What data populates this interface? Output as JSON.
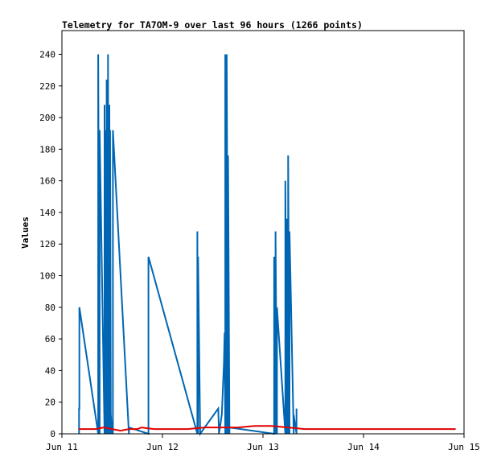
{
  "chart_data": {
    "type": "line",
    "title": "Telemetry for TA7OM-9 over last 96 hours (1266 points)",
    "xlabel": "",
    "ylabel": "Values",
    "x_ticks": [
      "Jun 11",
      "Jun 12",
      "Jun 13",
      "Jun 14",
      "Jun 15"
    ],
    "y_ticks": [
      0,
      20,
      40,
      60,
      80,
      100,
      120,
      140,
      160,
      180,
      200,
      220,
      240
    ],
    "xlim": [
      "2024-06-11T00:00",
      "2024-06-15T00:00"
    ],
    "ylim": [
      0,
      255
    ],
    "grid": false,
    "legend": "none",
    "series": [
      {
        "color": "#0066b3",
        "x": [
          "2024-06-11T04:05",
          "2024-06-11T04:05",
          "2024-06-11T04:10",
          "2024-06-11T04:10",
          "2024-06-11T08:40",
          "2024-06-11T08:40",
          "2024-06-11T09:00",
          "2024-06-11T09:00",
          "2024-06-11T10:10",
          "2024-06-11T10:10",
          "2024-06-11T10:20",
          "2024-06-11T10:20",
          "2024-06-11T10:40",
          "2024-06-11T10:40",
          "2024-06-11T11:00",
          "2024-06-11T11:00",
          "2024-06-11T11:10",
          "2024-06-11T11:10",
          "2024-06-11T11:20",
          "2024-06-11T11:20",
          "2024-06-11T11:30",
          "2024-06-11T11:30",
          "2024-06-11T11:40",
          "2024-06-11T11:40",
          "2024-06-11T12:00",
          "2024-06-11T12:00",
          "2024-06-11T12:10",
          "2024-06-11T12:10",
          "2024-06-11T16:00",
          "2024-06-11T16:00",
          "2024-06-11T20:40",
          "2024-06-11T20:40",
          "2024-06-12T08:20",
          "2024-06-12T08:20",
          "2024-06-12T08:30",
          "2024-06-12T08:30",
          "2024-06-12T09:00",
          "2024-06-12T13:20",
          "2024-06-12T13:30",
          "2024-06-12T14:10",
          "2024-06-12T14:40",
          "2024-06-12T14:50",
          "2024-06-12T15:00",
          "2024-06-12T15:00",
          "2024-06-12T15:20",
          "2024-06-12T15:20",
          "2024-06-12T15:40",
          "2024-06-12T15:40",
          "2024-06-12T16:00",
          "2024-06-12T16:00",
          "2024-06-13T02:40",
          "2024-06-13T02:40",
          "2024-06-13T03:00",
          "2024-06-13T03:00",
          "2024-06-13T03:20",
          "2024-06-13T03:20",
          "2024-06-13T05:20",
          "2024-06-13T05:20",
          "2024-06-13T05:40",
          "2024-06-13T05:40",
          "2024-06-13T06:00",
          "2024-06-13T06:00",
          "2024-06-13T06:20",
          "2024-06-13T06:20",
          "2024-06-13T07:20",
          "2024-06-13T07:20",
          "2024-06-13T08:00",
          "2024-06-13T08:00"
        ],
        "y": [
          0,
          16,
          16,
          80,
          0,
          240,
          0,
          192,
          0,
          208,
          0,
          192,
          0,
          224,
          0,
          240,
          0,
          112,
          0,
          208,
          0,
          192,
          0,
          12,
          0,
          4,
          0,
          192,
          0,
          4,
          0,
          112,
          0,
          128,
          0,
          112,
          0,
          16,
          0,
          12,
          44,
          64,
          0,
          240,
          0,
          240,
          0,
          176,
          0,
          4,
          0,
          112,
          0,
          128,
          0,
          80,
          0,
          160,
          0,
          136,
          0,
          176,
          0,
          128,
          0,
          12,
          0,
          16
        ]
      },
      {
        "color": "#e00000",
        "x": [
          "2024-06-11T04:00",
          "2024-06-11T08:00",
          "2024-06-11T10:00",
          "2024-06-11T12:00",
          "2024-06-11T14:00",
          "2024-06-11T16:00",
          "2024-06-11T18:00",
          "2024-06-11T19:00",
          "2024-06-11T22:00",
          "2024-06-12T02:00",
          "2024-06-12T06:00",
          "2024-06-12T10:00",
          "2024-06-12T14:00",
          "2024-06-12T16:00",
          "2024-06-12T18:00",
          "2024-06-12T22:00",
          "2024-06-13T02:00",
          "2024-06-13T06:00",
          "2024-06-13T10:00",
          "2024-06-13T16:00",
          "2024-06-13T22:00",
          "2024-06-14T04:00",
          "2024-06-14T10:00",
          "2024-06-14T16:00",
          "2024-06-14T22:00"
        ],
        "y": [
          3,
          3,
          4,
          3,
          2,
          3,
          3,
          4,
          3,
          3,
          3,
          4,
          4,
          4,
          4,
          5,
          5,
          4,
          3,
          3,
          3,
          3,
          3,
          3,
          3
        ]
      },
      {
        "color": "#000000",
        "x": [
          "2024-06-11T00:00",
          "2024-06-14T22:00"
        ],
        "y": [
          0,
          0
        ]
      }
    ]
  }
}
